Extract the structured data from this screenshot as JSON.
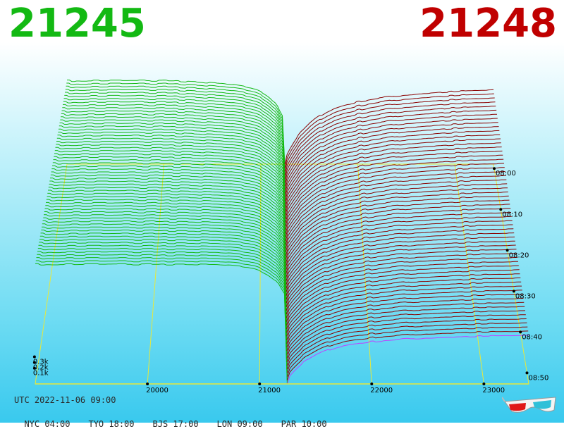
{
  "header": {
    "bid_price": "21245",
    "ask_price": "21248"
  },
  "footer": {
    "utc": "UTC 2022-11-06 09:00",
    "zones": [
      "NYC 04:00",
      "TYO 18:00",
      "BJS 17:00",
      "LON 09:00",
      "PAR 10:00"
    ]
  },
  "colors": {
    "bid": "#13b913",
    "ask": "#8b0000",
    "grid": "#e8e83a",
    "latest": "#c040ff"
  },
  "icons": {
    "glasses": "3d-glasses-icon"
  },
  "chart_data": {
    "type": "area",
    "x_ticks": [
      20000,
      21000,
      22000,
      23000
    ],
    "volume_ticks": [
      "0.1k",
      "0.2k",
      "0.3k"
    ],
    "time_ticks": [
      "08:00",
      "08:10",
      "08:20",
      "08:30",
      "08:40",
      "08:50"
    ],
    "xlim": [
      19000,
      23400
    ],
    "volume_range": [
      0,
      0.9
    ],
    "series": [
      {
        "side": "bid",
        "price_range": [
          19000,
          21245
        ]
      },
      {
        "side": "ask",
        "price_range": [
          21248,
          23400
        ]
      }
    ]
  }
}
